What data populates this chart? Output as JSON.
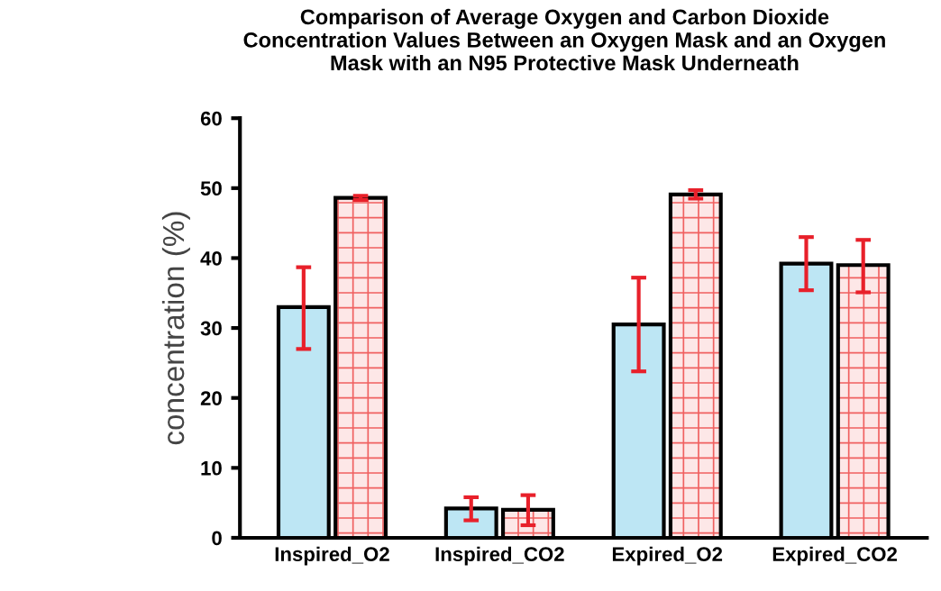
{
  "chart_data": {
    "type": "bar",
    "title": "Comparison of Average Oxygen and Carbon Dioxide\nConcentration Values Between an Oxygen Mask and an Oxygen\nMask with an N95 Protective Mask Underneath",
    "ylabel": "concentration (%)",
    "categories": [
      "Inspired_O2",
      "Inspired_CO2",
      "Expired_O2",
      "Expired_CO2"
    ],
    "series": [
      {
        "color": "#bde6f4",
        "values": [
          33,
          4.2,
          30.5,
          39.2
        ],
        "errors": [
          [
            27,
            38.7
          ],
          [
            2.5,
            5.8
          ],
          [
            23.8,
            37.2
          ],
          [
            35.4,
            43
          ]
        ]
      },
      {
        "color": "#f06060",
        "values": [
          48.6,
          4.0,
          49.1,
          39.0
        ],
        "errors": [
          [
            48.3,
            48.9
          ],
          [
            1.8,
            6.1
          ],
          [
            48.5,
            49.7
          ],
          [
            35.1,
            42.6
          ]
        ]
      }
    ],
    "ylim": [
      0,
      60
    ],
    "yticks": [
      0,
      10,
      20,
      30,
      40,
      50,
      60
    ],
    "grid": false,
    "legend": false
  }
}
